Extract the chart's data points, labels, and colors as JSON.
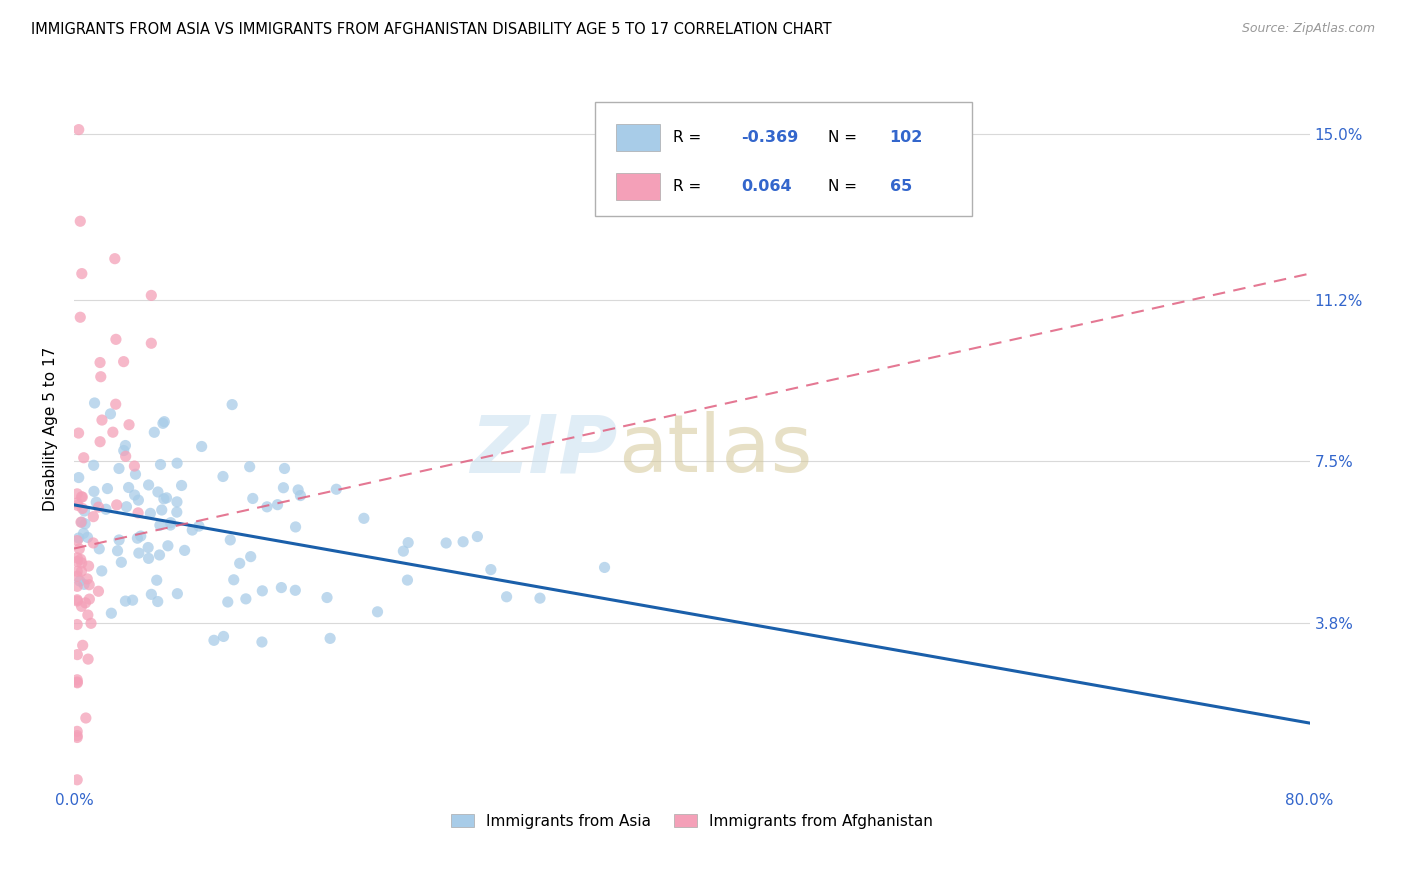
{
  "title": "IMMIGRANTS FROM ASIA VS IMMIGRANTS FROM AFGHANISTAN DISABILITY AGE 5 TO 17 CORRELATION CHART",
  "source": "Source: ZipAtlas.com",
  "ylabel": "Disability Age 5 to 17",
  "ytick_labels": [
    "3.8%",
    "7.5%",
    "11.2%",
    "15.0%"
  ],
  "ytick_values": [
    0.038,
    0.075,
    0.112,
    0.15
  ],
  "xlim": [
    0.0,
    0.8
  ],
  "ylim": [
    0.0,
    0.165
  ],
  "legend_blue_R": "-0.369",
  "legend_blue_N": "102",
  "legend_pink_R": "0.064",
  "legend_pink_N": "65",
  "legend_label_blue": "Immigrants from Asia",
  "legend_label_pink": "Immigrants from Afghanistan",
  "color_blue": "#a8cce8",
  "color_pink": "#f4a0b8",
  "color_blue_line": "#1a5faa",
  "color_pink_line": "#e06080",
  "blue_line_x0": 0.0,
  "blue_line_y0": 0.065,
  "blue_line_x1": 0.8,
  "blue_line_y1": 0.015,
  "pink_line_x0": 0.0,
  "pink_line_y0": 0.055,
  "pink_line_x1": 0.8,
  "pink_line_y1": 0.118
}
